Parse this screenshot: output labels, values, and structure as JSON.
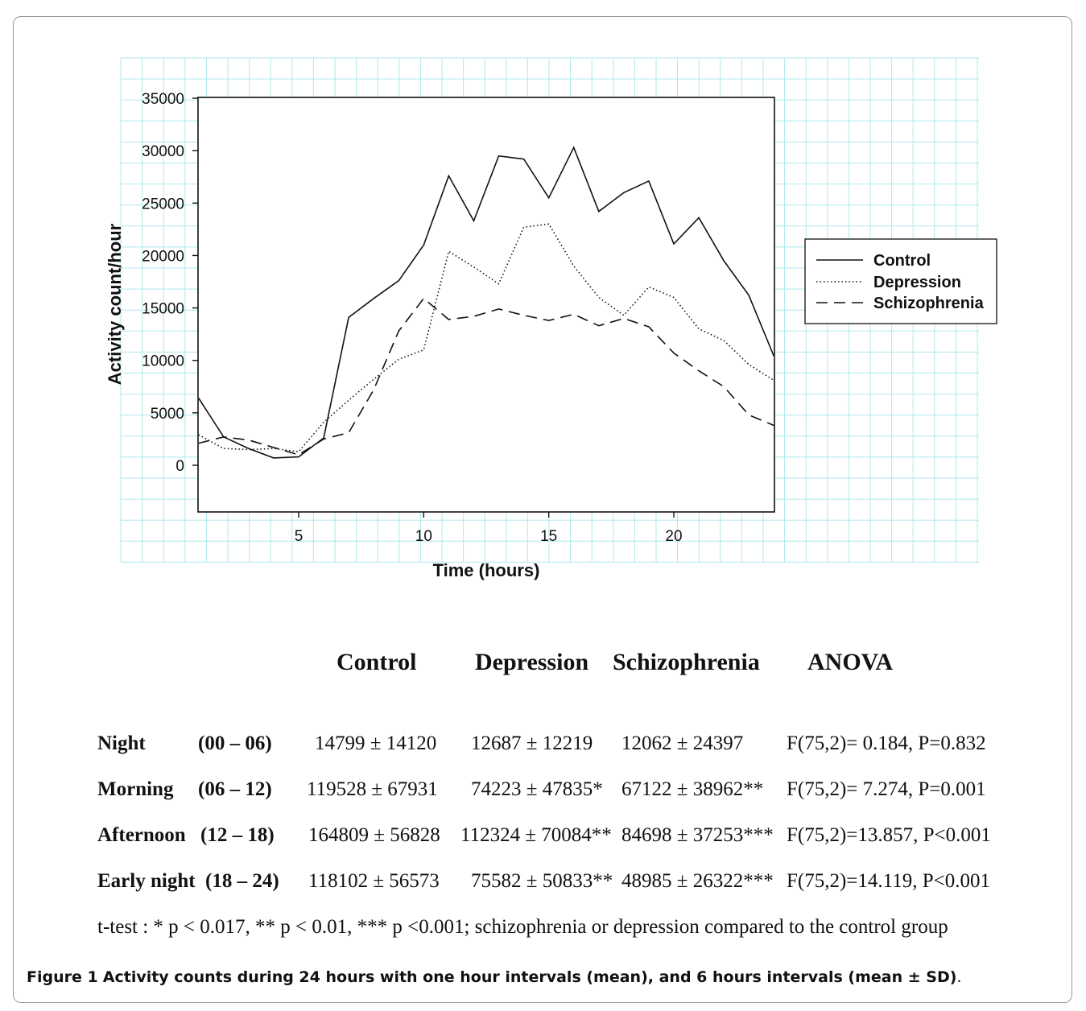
{
  "chart_data": {
    "type": "line",
    "xlabel": "Time (hours)",
    "ylabel": "Activity count/hour",
    "xlim": [
      1,
      24
    ],
    "ylim": [
      -4500,
      35000
    ],
    "x_ticks": [
      5,
      10,
      15,
      20
    ],
    "y_ticks": [
      0,
      5000,
      10000,
      15000,
      20000,
      25000,
      30000,
      35000
    ],
    "x_tick_labels": [
      "5",
      "10",
      "15",
      "20"
    ],
    "y_tick_labels": [
      "0",
      "5000",
      "10000",
      "15000",
      "20000",
      "25000",
      "30000",
      "35000"
    ],
    "legend_position": "right",
    "x": [
      1,
      2,
      3,
      4,
      5,
      6,
      7,
      8,
      9,
      10,
      11,
      12,
      13,
      14,
      15,
      16,
      17,
      18,
      19,
      20,
      21,
      22,
      23,
      24
    ],
    "series": [
      {
        "name": "Control",
        "style": "solid",
        "values": [
          6400,
          2700,
          1600,
          700,
          800,
          2600,
          14100,
          15900,
          17600,
          21000,
          27600,
          23300,
          29500,
          29200,
          25500,
          30300,
          24200,
          26000,
          27100,
          21100,
          23600,
          19500,
          16200,
          10400
        ]
      },
      {
        "name": "Depression",
        "style": "dotted",
        "values": [
          2900,
          1600,
          1500,
          1600,
          1300,
          4100,
          6200,
          8200,
          10100,
          11000,
          20400,
          18900,
          17300,
          22700,
          23000,
          19000,
          16000,
          14300,
          17000,
          16000,
          13000,
          11900,
          9600,
          8100
        ]
      },
      {
        "name": "Schizophrenia",
        "style": "dashed",
        "values": [
          2100,
          2700,
          2400,
          1700,
          1000,
          2500,
          3100,
          7200,
          12800,
          15900,
          13900,
          14200,
          14900,
          14300,
          13800,
          14400,
          13300,
          14000,
          13200,
          10700,
          9000,
          7500,
          4800,
          3800
        ]
      }
    ]
  },
  "table": {
    "headers": [
      "Control",
      "Depression",
      "Schizophrenia",
      "ANOVA"
    ],
    "rows": [
      {
        "label": "Night",
        "range": "(00 – 06)",
        "control": "14799  ± 14120",
        "depression": "12687  ± 12219",
        "schizophrenia": "12062  ±  24397",
        "anova": "F(75,2)=  0.184,  P=0.832"
      },
      {
        "label": "Morning",
        "range": "(06 – 12)",
        "control": "119528  ± 67931",
        "depression": "74223  ± 47835*",
        "schizophrenia": "67122  ± 38962**",
        "anova": "F(75,2)=  7.274,  P=0.001"
      },
      {
        "label": "Afternoon",
        "range": "(12 – 18)",
        "control": "164809 ± 56828",
        "depression": "112324  ± 70084**",
        "schizophrenia": "84698  ± 37253***",
        "anova": "F(75,2)=13.857,  P<0.001"
      },
      {
        "label": "Early night",
        "range": "(18 – 24)",
        "control": "118102 ± 56573",
        "depression": "75582  ± 50833**",
        "schizophrenia": "48985  ± 26322***",
        "anova": "F(75,2)=14.119,  P<0.001"
      }
    ],
    "footnote": "t-test : * p < 0.017, ** p < 0.01, *** p <0.001; schizophrenia or depression compared to the control group"
  },
  "caption": {
    "label": "Figure 1",
    "text": "Activity counts during 24 hours with one hour intervals (mean), and 6 hours intervals (mean ± SD)",
    "end": "."
  },
  "colors": {
    "line": "#111111",
    "grid": "#aee8ec",
    "frame": "#9a9a9a"
  }
}
